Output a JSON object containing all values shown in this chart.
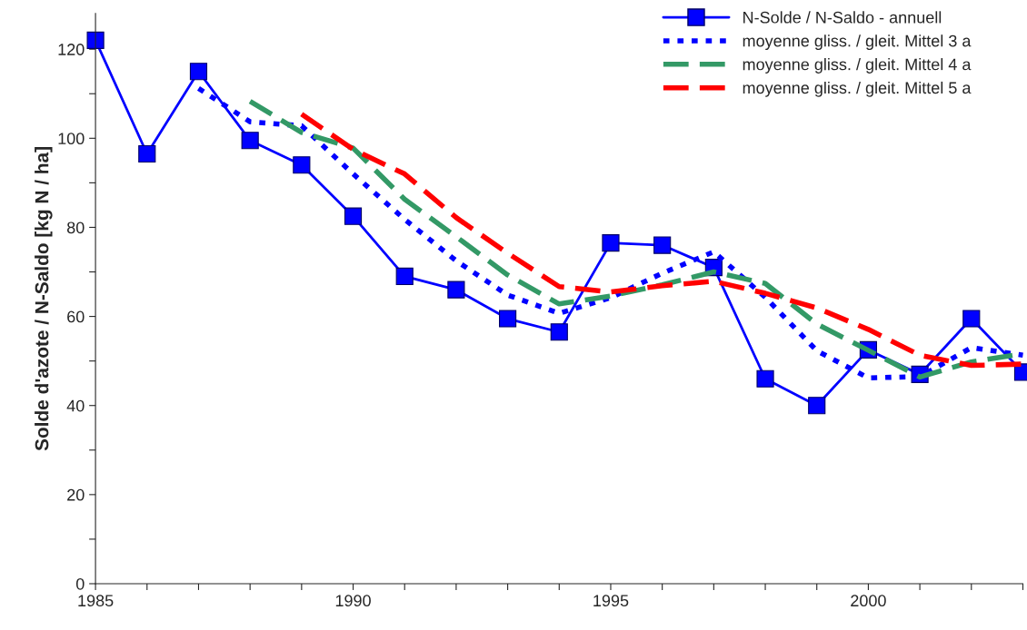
{
  "chart_data": {
    "type": "line",
    "ylabel": "Solde d'azote / N-Saldo [kg N / ha]",
    "x": [
      1985,
      1986,
      1987,
      1988,
      1989,
      1990,
      1991,
      1992,
      1993,
      1994,
      1995,
      1996,
      1997,
      1998,
      1999,
      2000,
      2001,
      2002,
      2003
    ],
    "series": [
      {
        "name": "N-Solde / N-Saldo - annuell",
        "color": "#0000ff",
        "marker": "square",
        "line_style": "solid",
        "values": [
          122,
          96.5,
          115,
          99.5,
          94,
          82.5,
          69,
          66,
          59.5,
          56.5,
          76.5,
          76,
          71,
          46,
          40,
          52.5,
          47,
          59.5,
          47.5
        ]
      },
      {
        "name": "moyenne gliss. / gleit. Mittel 3 a",
        "color": "#0000ff",
        "marker": "none",
        "line_style": "dotted",
        "values": [
          null,
          null,
          111.2,
          103.7,
          102.8,
          92.0,
          81.8,
          72.5,
          64.8,
          60.7,
          64.2,
          69.7,
          74.5,
          64.3,
          52.3,
          46.2,
          46.5,
          53.0,
          51.3
        ]
      },
      {
        "name": "moyenne gliss. / gleit. Mittel 4 a",
        "color": "#339966",
        "marker": "none",
        "line_style": "dashed",
        "values": [
          null,
          null,
          null,
          108.3,
          101.3,
          97.8,
          86.3,
          77.9,
          69.3,
          62.8,
          64.6,
          67.1,
          70.0,
          67.4,
          58.3,
          52.4,
          46.4,
          49.8,
          51.6
        ]
      },
      {
        "name": "moyenne gliss. / gleit. Mittel 5 a",
        "color": "#ff0000",
        "marker": "none",
        "line_style": "dashed",
        "values": [
          null,
          null,
          null,
          null,
          105.4,
          97.5,
          92.0,
          82.2,
          74.2,
          66.7,
          65.5,
          66.9,
          67.9,
          65.2,
          61.9,
          57.1,
          51.3,
          49.0,
          49.3
        ]
      }
    ],
    "xlim": [
      1985,
      2003
    ],
    "xticks": [
      1985,
      {
        "value": 1986,
        "label": null
      },
      {
        "value": 1987,
        "label": null
      },
      {
        "value": 1988,
        "label": null
      },
      {
        "value": 1989,
        "label": null
      },
      1990,
      {
        "value": 1991,
        "label": null
      },
      {
        "value": 1992,
        "label": null
      },
      {
        "value": 1993,
        "label": null
      },
      {
        "value": 1994,
        "label": null
      },
      1995,
      {
        "value": 1996,
        "label": null
      },
      {
        "value": 1997,
        "label": null
      },
      {
        "value": 1998,
        "label": null
      },
      {
        "value": 1999,
        "label": null
      },
      2000,
      {
        "value": 2001,
        "label": null
      },
      {
        "value": 2002,
        "label": null
      },
      {
        "value": 2003,
        "label": null
      }
    ],
    "ylim": [
      0,
      128
    ],
    "yticks": [
      0,
      {
        "value": 10,
        "label": null
      },
      20,
      {
        "value": 30,
        "label": null
      },
      40,
      {
        "value": 50,
        "label": null
      },
      60,
      {
        "value": 70,
        "label": null
      },
      80,
      {
        "value": 90,
        "label": null
      },
      100,
      {
        "value": 110,
        "label": null
      },
      120
    ],
    "grid": false,
    "legend": "top right"
  }
}
